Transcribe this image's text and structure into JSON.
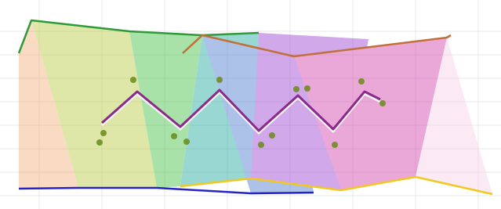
{
  "chart_data": {
    "type": "line",
    "xlim": [
      0,
      639
    ],
    "ylim": [
      0,
      267
    ],
    "series": [
      {
        "color": "#2e9a3a",
        "x": [
          24,
          40,
          165,
          258,
          330
        ],
        "values": [
          199,
          241,
          227,
          222,
          225
        ]
      },
      {
        "color": "#c0703a",
        "x": [
          233,
          258,
          375,
          570,
          575
        ],
        "values": [
          199,
          222,
          195,
          219,
          222
        ]
      },
      {
        "color": "#2424c8",
        "x": [
          24,
          100,
          200,
          320,
          400
        ],
        "values": [
          26,
          27,
          27,
          20,
          21
        ]
      },
      {
        "color": "#f2c81e",
        "x": [
          230,
          320,
          435,
          530,
          628
        ],
        "values": [
          29,
          39,
          24,
          41,
          19
        ]
      },
      {
        "color": "#f4f4f4",
        "x": [
          130,
          175,
          230,
          280,
          330,
          380,
          425,
          465,
          485
        ],
        "values": [
          107,
          147,
          102,
          149,
          97,
          142,
          99,
          147,
          137
        ]
      },
      {
        "color": "#8a2a8a",
        "x": [
          130,
          175,
          230,
          280,
          330,
          380,
          425,
          465,
          485
        ],
        "values": [
          110,
          150,
          105,
          152,
          100,
          145,
          102,
          150,
          140
        ]
      },
      {
        "color": "#6a8a1a",
        "mode": "markers",
        "x": [
          127,
          132,
          170,
          222,
          238,
          280,
          333,
          347,
          378,
          392,
          427,
          461,
          488
        ],
        "values": [
          85,
          97,
          165,
          93,
          86,
          165,
          82,
          94,
          153,
          154,
          82,
          163,
          135
        ]
      }
    ],
    "grid": true
  }
}
